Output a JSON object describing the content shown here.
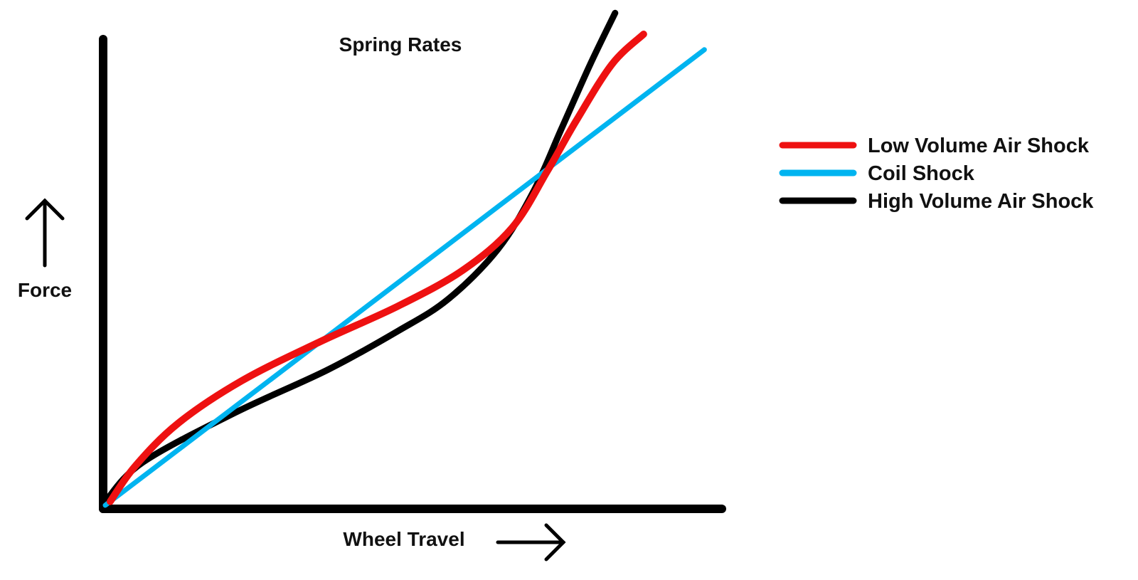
{
  "chart_data": {
    "type": "line",
    "title": "Spring Rates",
    "xlabel": "Wheel Travel",
    "ylabel": "Force",
    "xlim": [
      0,
      100
    ],
    "ylim": [
      0,
      100
    ],
    "grid": false,
    "legend_position": "right",
    "series": [
      {
        "name": "Low Volume Air Shock",
        "color": "#ee1111",
        "x": [
          0.8,
          4.8,
          11.7,
          22,
          34.6,
          47.2,
          57.6,
          65.6,
          71.3,
          75.9,
          81.7,
          86.8
        ],
        "y": [
          0.8,
          8.3,
          17.4,
          26.5,
          34.8,
          42.4,
          50,
          59.1,
          71.2,
          81.8,
          93.9,
          100.3
        ]
      },
      {
        "name": "Coil Shock",
        "color": "#00b4f0",
        "x": [
          0,
          96.6
        ],
        "y": [
          0,
          97
        ]
      },
      {
        "name": "High Volume Air Shock",
        "color": "#000000",
        "x": [
          0,
          6,
          20.9,
          35.8,
          47.2,
          55.3,
          63.3,
          69,
          73.6,
          78.2,
          82.2
        ],
        "y": [
          0.8,
          9.1,
          19.7,
          28.8,
          37.1,
          43.9,
          54.5,
          66.7,
          80.3,
          93.9,
          104.8
        ]
      }
    ]
  }
}
